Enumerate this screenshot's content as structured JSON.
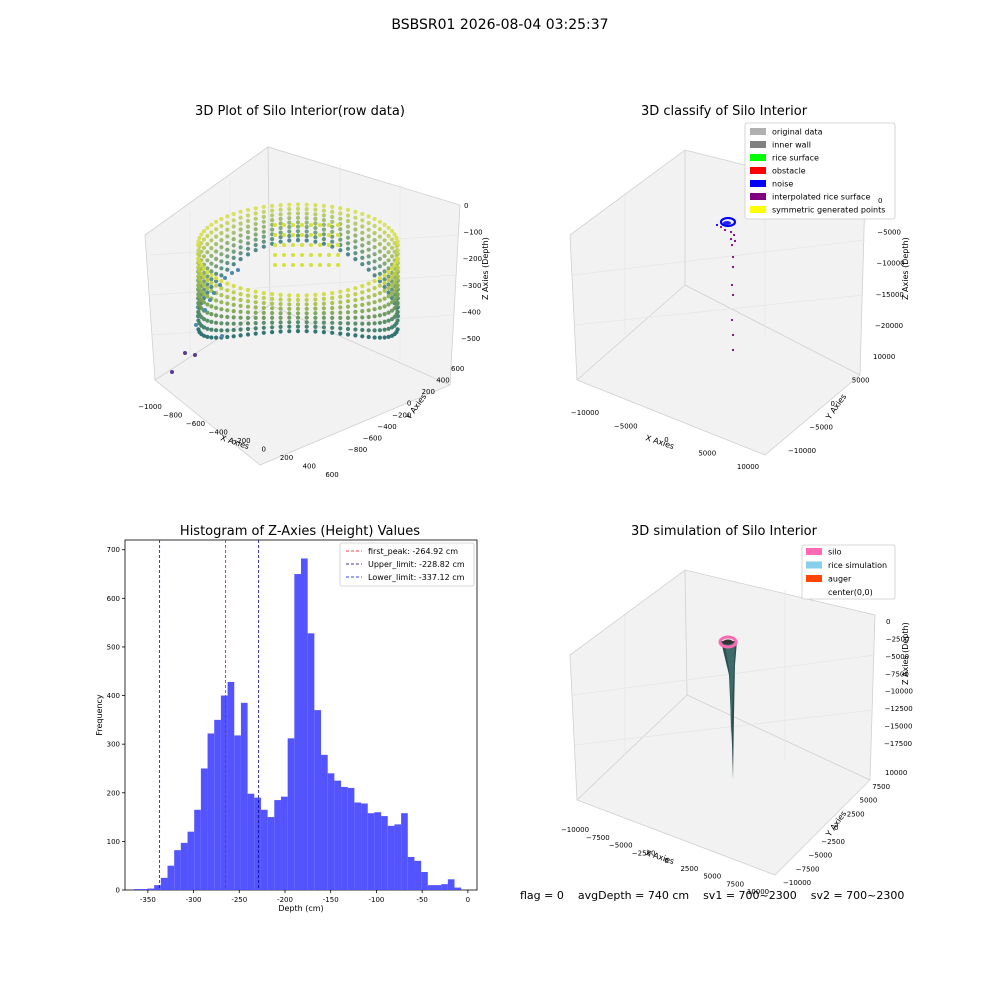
{
  "suptitle": "BSBSR01 2026-08-04 03:25:37",
  "panels": {
    "raw": {
      "title": "3D Plot of Silo Interior(row data)",
      "xlabel": "X Axies",
      "ylabel": "Y Axies",
      "zlabel": "Z Axies (Depth)",
      "xticks": [
        "−1000",
        "−800",
        "−600",
        "−400",
        "−200",
        "0",
        "200",
        "400",
        "600"
      ],
      "yticks": [
        "−800",
        "−600",
        "−400",
        "−200",
        "0",
        "200",
        "400",
        "600"
      ],
      "zticks": [
        "0",
        "−100",
        "−200",
        "−300",
        "−400",
        "−500"
      ]
    },
    "classify": {
      "title": "3D classify of Silo Interior",
      "xlabel": "X Axies",
      "ylabel": "Y Axies",
      "zlabel": "Z Axies (Depth)",
      "xticks": [
        "−10000",
        "−5000",
        "0",
        "5000",
        "10000"
      ],
      "yticks": [
        "−10000",
        "−5000",
        "0",
        "5000",
        "10000"
      ],
      "zticks": [
        "0",
        "−5000",
        "−10000",
        "−15000",
        "−20000"
      ],
      "legend": [
        {
          "label": "original data",
          "color": "#b0b0b0"
        },
        {
          "label": "inner wall",
          "color": "#808080"
        },
        {
          "label": "rice surface",
          "color": "#00ff00"
        },
        {
          "label": "obstacle",
          "color": "#ff0000"
        },
        {
          "label": "noise",
          "color": "#0000ff"
        },
        {
          "label": "interpolated rice surface",
          "color": "#800080"
        },
        {
          "label": "symmetric generated points",
          "color": "#ffff00"
        }
      ]
    },
    "simulation": {
      "title": "3D simulation of Silo Interior",
      "xlabel": "X Axies",
      "ylabel": "Y Axies",
      "zlabel": "Z Axies (Depth)",
      "xticks": [
        "−10000",
        "−7500",
        "−5000",
        "−2500",
        "0",
        "2500",
        "5000",
        "7500",
        "10000"
      ],
      "yticks": [
        "−10000",
        "−7500",
        "−5000",
        "−2500",
        "0",
        "2500",
        "5000",
        "7500",
        "10000"
      ],
      "zticks": [
        "0",
        "−2500",
        "−5000",
        "−7500",
        "−10000",
        "−12500",
        "−15000",
        "−17500"
      ],
      "legend": [
        {
          "label": "silo",
          "color": "#ff69b4"
        },
        {
          "label": "rice simulation",
          "color": "#87ceeb"
        },
        {
          "label": "auger",
          "color": "#ff4500"
        },
        {
          "label": "center(0,0)",
          "color": "#ffffff"
        }
      ]
    }
  },
  "chart_data": {
    "type": "bar",
    "title": "Histogram of Z-Axies (Height) Values",
    "xlabel": "Depth (cm)",
    "ylabel": "Frequency",
    "xlim": [
      -375,
      10
    ],
    "ylim": [
      0,
      720
    ],
    "xticks": [
      -350,
      -300,
      -250,
      -200,
      -150,
      -100,
      -50,
      0
    ],
    "yticks": [
      0,
      100,
      200,
      300,
      400,
      500,
      600,
      700
    ],
    "bin_width": 7.3,
    "bins_start": [
      -365,
      -357.7,
      -350.4,
      -343.1,
      -335.8,
      -328.5,
      -321.2,
      -313.9,
      -306.6,
      -299.3,
      -292,
      -284.7,
      -277.4,
      -270.1,
      -262.8,
      -255.5,
      -248.2,
      -240.9,
      -233.6,
      -226.3,
      -219,
      -211.7,
      -204.4,
      -197.1,
      -189.8,
      -182.5,
      -175.2,
      -167.9,
      -160.6,
      -153.3,
      -146,
      -138.7,
      -131.4,
      -124.1,
      -116.8,
      -109.5,
      -102.2,
      -94.9,
      -87.6,
      -80.3,
      -73,
      -65.7,
      -58.4,
      -51.1,
      -43.8,
      -36.5,
      -29.2,
      -21.9,
      -14.6,
      -7.3
    ],
    "values": [
      2,
      2,
      3,
      10,
      25,
      50,
      82,
      97,
      120,
      165,
      250,
      322,
      350,
      400,
      428,
      318,
      385,
      198,
      190,
      165,
      150,
      185,
      192,
      312,
      650,
      682,
      528,
      370,
      278,
      240,
      225,
      212,
      210,
      180,
      178,
      158,
      160,
      152,
      132,
      135,
      158,
      68,
      60,
      37,
      10,
      10,
      12,
      22,
      5,
      0
    ],
    "lines": [
      {
        "label": "first_peak: -264.92 cm",
        "x": -264.92,
        "color": "#ff0000"
      },
      {
        "label": "Upper_limit: -228.82 cm",
        "x": -228.82,
        "color": "#00008b"
      },
      {
        "label": "Lower_limit: -337.12 cm",
        "x": -337.12,
        "color": "#0000ff"
      }
    ],
    "bar_color": "#4b4bff",
    "legend_position": "top-right"
  },
  "footer": {
    "flag": "flag = 0",
    "avg": "avgDepth = 740 cm",
    "sv1": "sv1 = 700~2300",
    "sv2": "sv2 = 700~2300"
  }
}
